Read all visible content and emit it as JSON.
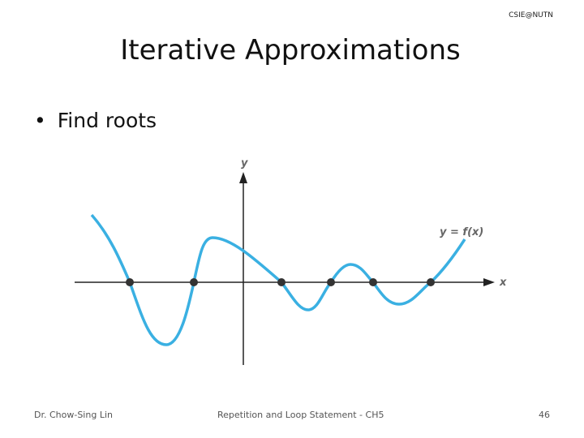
{
  "header": {
    "tag": "CSIE@NUTN",
    "title": "Iterative Approximations"
  },
  "body": {
    "bullets": [
      "Find roots"
    ],
    "figure": {
      "y_axis_label": "y",
      "x_axis_label": "x",
      "curve_label": "y = f(x)"
    }
  },
  "footer": {
    "author": "Dr. Chow-Sing Lin",
    "course": "Repetition and Loop Statement - CH5",
    "page": 46
  }
}
